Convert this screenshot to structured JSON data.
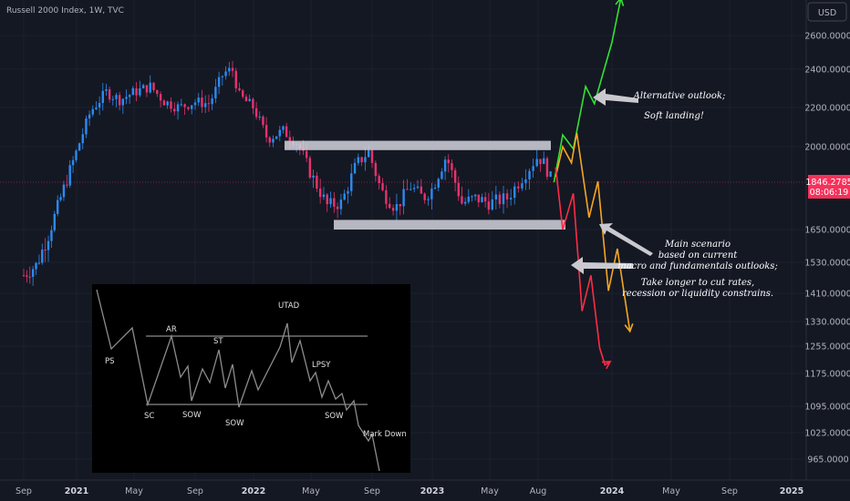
{
  "header": {
    "title": "Russell 2000 Index, 1W, TVC"
  },
  "currency_button": "USD",
  "price_tag": {
    "value": "1846.2785",
    "countdown": "08:06:19",
    "color": "#f7315b"
  },
  "chart_data": {
    "type": "candlestick",
    "ticker": "Russell 2000 Index",
    "interval": "1W",
    "source": "TVC",
    "currency": "USD",
    "y_ticks": [
      "2600.0000",
      "2400.0000",
      "2200.0000",
      "2000.0000",
      "1846.2785",
      "1650.0000",
      "1530.0000",
      "1410.0000",
      "1330.0000",
      "1255.0000",
      "1175.0000",
      "1095.0000",
      "1025.0000",
      "965.0000"
    ],
    "y_tick_values": [
      2600,
      2400,
      2200,
      2000,
      1650,
      1530,
      1410,
      1330,
      1255,
      1175,
      1095,
      1025,
      965
    ],
    "x_ticks": [
      "Sep",
      "2021",
      "May",
      "Sep",
      "2022",
      "May",
      "Sep",
      "2023",
      "May",
      "Aug",
      "2024",
      "May",
      "Sep",
      "2025"
    ],
    "x_years": [
      "2021",
      "2022",
      "2023",
      "2024",
      "2025"
    ],
    "last_price": 1846.2785,
    "path": [
      [
        2020.67,
        1480
      ],
      [
        2020.75,
        1520
      ],
      [
        2020.83,
        1640
      ],
      [
        2020.92,
        1820
      ],
      [
        2021.0,
        1980
      ],
      [
        2021.08,
        2180
      ],
      [
        2021.17,
        2280
      ],
      [
        2021.25,
        2240
      ],
      [
        2021.33,
        2280
      ],
      [
        2021.42,
        2310
      ],
      [
        2021.5,
        2230
      ],
      [
        2021.58,
        2200
      ],
      [
        2021.67,
        2230
      ],
      [
        2021.75,
        2220
      ],
      [
        2021.83,
        2380
      ],
      [
        2021.88,
        2400
      ],
      [
        2021.92,
        2260
      ],
      [
        2022.0,
        2200
      ],
      [
        2022.08,
        2040
      ],
      [
        2022.17,
        2080
      ],
      [
        2022.25,
        2020
      ],
      [
        2022.33,
        1880
      ],
      [
        2022.42,
        1750
      ],
      [
        2022.5,
        1760
      ],
      [
        2022.58,
        1920
      ],
      [
        2022.65,
        1980
      ],
      [
        2022.72,
        1810
      ],
      [
        2022.8,
        1740
      ],
      [
        2022.88,
        1830
      ],
      [
        2022.95,
        1780
      ],
      [
        2023.0,
        1820
      ],
      [
        2023.08,
        1960
      ],
      [
        2023.17,
        1760
      ],
      [
        2023.25,
        1780
      ],
      [
        2023.33,
        1760
      ],
      [
        2023.42,
        1780
      ],
      [
        2023.5,
        1870
      ],
      [
        2023.58,
        1960
      ],
      [
        2023.62,
        1920
      ],
      [
        2023.66,
        1846
      ]
    ],
    "zones": [
      {
        "name": "resistance",
        "low": 1985,
        "high": 2030
      },
      {
        "name": "support",
        "low": 1650,
        "high": 1690
      }
    ],
    "scenarios": [
      {
        "name": "Alternative outlook",
        "color": "#33e233",
        "path": [
          [
            2023.67,
            1846
          ],
          [
            2023.72,
            2060
          ],
          [
            2023.78,
            1990
          ],
          [
            2023.85,
            2310
          ],
          [
            2023.9,
            2220
          ],
          [
            2024.0,
            2560
          ],
          [
            2024.05,
            2800
          ]
        ]
      },
      {
        "name": "Orange scenario",
        "color": "#f5a623",
        "path": [
          [
            2023.68,
            1870
          ],
          [
            2023.72,
            2000
          ],
          [
            2023.77,
            1930
          ],
          [
            2023.8,
            2070
          ],
          [
            2023.87,
            1700
          ],
          [
            2023.92,
            1850
          ],
          [
            2023.98,
            1420
          ],
          [
            2024.03,
            1580
          ],
          [
            2024.1,
            1300
          ]
        ]
      },
      {
        "name": "Main scenario",
        "color": "#ff2b45",
        "path": [
          [
            2023.68,
            1910
          ],
          [
            2023.72,
            1650
          ],
          [
            2023.78,
            1800
          ],
          [
            2023.83,
            1360
          ],
          [
            2023.88,
            1480
          ],
          [
            2023.93,
            1250
          ],
          [
            2023.96,
            1200
          ],
          [
            2023.99,
            1210
          ]
        ]
      }
    ]
  },
  "annotations": {
    "alt_line1": "Alternative outlook;",
    "alt_line2": "Soft landing!",
    "main_line1": "Main scenario",
    "main_line2": "based on current",
    "main_line3": "macro and fundamentals outlooks;",
    "main_line4": "Take longer to cut rates,",
    "main_line5": "recession or liquidity constrains."
  },
  "wyckoff_inset": {
    "labels": [
      "PS",
      "AR",
      "SC",
      "ST",
      "SOW",
      "SOW",
      "UTAD",
      "LPSY",
      "SOW",
      "Mark Down"
    ]
  }
}
